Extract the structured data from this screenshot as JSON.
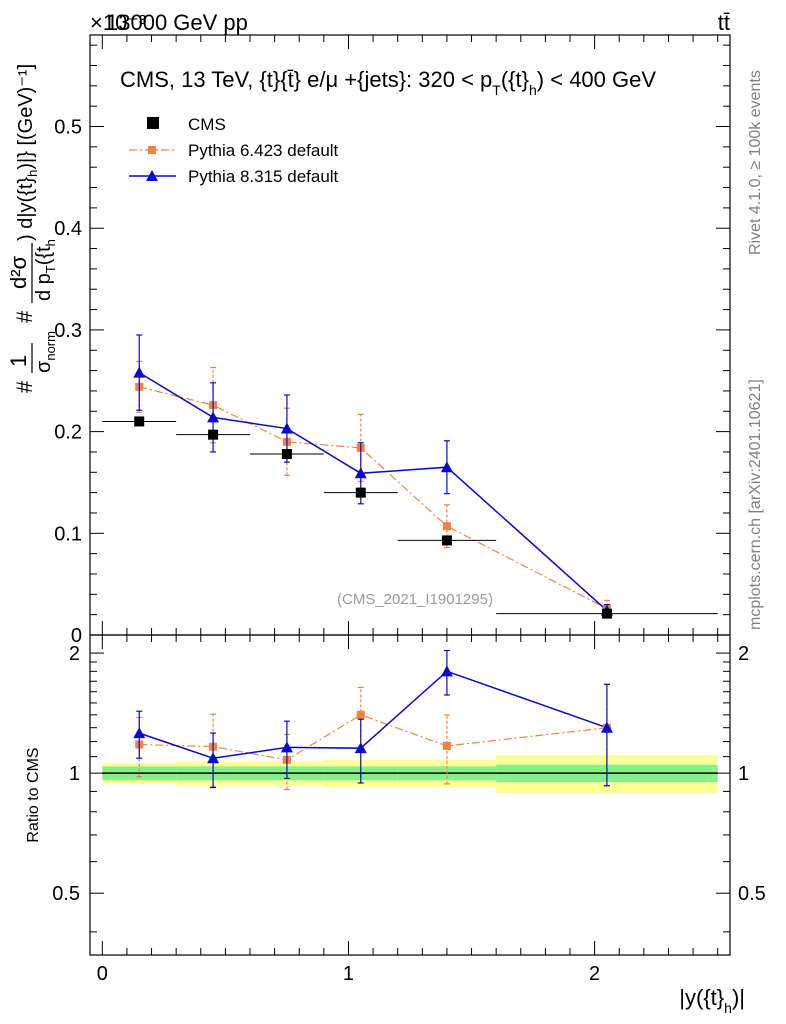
{
  "header": {
    "left": "13000 GeV pp",
    "right": "tt̄",
    "exponent": "×10⁻³"
  },
  "side_labels": {
    "rivet": "Rivet 4.1.0, ≥ 100k events",
    "mcplots": "mcplots.cern.ch [arXiv:2401.10621]"
  },
  "colors": {
    "cms": "#000000",
    "pythia6": "#f5813c",
    "pythia8": "#0a0acc",
    "band_inner": "#88f088",
    "band_outer": "#ffff99",
    "axis": "#000000"
  },
  "chart_data": [
    {
      "type": "scatter",
      "panel": "main",
      "title": "CMS, 13 TeV, {t}{t̄} e/μ +{jets}: 320 < p_T({t}_h) < 400 GeV",
      "title_parts": {
        "prefix": "CMS, 13 TeV, {t}{t̄} e/μ +{jets}: 320 <  p",
        "sub1": "T",
        "mid": "({t}",
        "sub2": "h",
        "suffix": ") < 400 GeV"
      },
      "ylabel": "# 1/σ_norm # d²σ / d p_T({t_h}) d|y({t}_h)| [(GeV)⁻¹]",
      "ylabel_parts": {
        "hash1": "#",
        "frac1_num": "1",
        "frac1_den": "σ",
        "frac1_den_sub": "norm",
        "hash2": "#",
        "frac2_num": "d²σ",
        "frac2_den": "d p",
        "frac2_den_sub": "T",
        "frac2_den_rest": "({t",
        "frac2_den_rest_sub": "h",
        "tail": ") d|y({t}",
        "tail_sub": "h",
        "tail_end": ")|} [(GeV)⁻¹]"
      },
      "yscale_exponent": -3,
      "ylim": [
        0,
        0.59
      ],
      "xlim": [
        -0.05,
        2.55
      ],
      "yticks": [
        0,
        0.1,
        0.2,
        0.3,
        0.4,
        0.5
      ],
      "ytick_labels": [
        "0",
        "0.1",
        "0.2",
        "0.3",
        "0.4",
        "0.5"
      ],
      "annotation": "(CMS_2021_I1901295)",
      "legend_position": "top-left",
      "series": [
        {
          "name": "CMS",
          "marker": "square",
          "x": [
            0.15,
            0.45,
            0.75,
            1.05,
            1.4,
            2.05
          ],
          "x_err": [
            0.15,
            0.15,
            0.15,
            0.15,
            0.2,
            0.45
          ],
          "y": [
            0.21,
            0.197,
            0.178,
            0.14,
            0.093,
            0.021
          ],
          "y_err": [
            0.004,
            0.004,
            0.003,
            0.003,
            0.002,
            0.001
          ]
        },
        {
          "name": "Pythia 6.423 default",
          "marker": "square-small",
          "line": "dashdot",
          "x": [
            0.15,
            0.45,
            0.75,
            1.05,
            1.4,
            2.05
          ],
          "y": [
            0.244,
            0.226,
            0.19,
            0.184,
            0.107,
            0.026
          ],
          "y_err": [
            0.025,
            0.037,
            0.033,
            0.033,
            0.021,
            0.008
          ]
        },
        {
          "name": "Pythia 8.315 default",
          "marker": "triangle",
          "line": "solid",
          "x": [
            0.15,
            0.45,
            0.75,
            1.05,
            1.4,
            2.05
          ],
          "y": [
            0.258,
            0.214,
            0.203,
            0.159,
            0.165,
            0.024
          ],
          "y_err": [
            0.037,
            0.034,
            0.033,
            0.03,
            0.026,
            0.006
          ]
        }
      ]
    },
    {
      "type": "scatter",
      "panel": "ratio",
      "ylabel": "Ratio to CMS",
      "xlabel": "|y({t}_h)|",
      "xlabel_parts": {
        "main": "|y({t}",
        "sub": "h",
        "end": ")|"
      },
      "ylim": [
        0.35,
        2.22
      ],
      "xlim": [
        -0.05,
        2.55
      ],
      "yticks": [
        0.5,
        1,
        2
      ],
      "ytick_labels": [
        "0.5",
        "1",
        "2"
      ],
      "xticks": [
        0,
        1,
        2
      ],
      "xtick_labels": [
        "0",
        "1",
        "2"
      ],
      "reference": 1,
      "band": {
        "edges": [
          0,
          0.3,
          0.6,
          0.9,
          1.2,
          1.6,
          2.5
        ],
        "inner": [
          0.04,
          0.04,
          0.04,
          0.04,
          0.04,
          0.05
        ],
        "outer": [
          0.06,
          0.07,
          0.07,
          0.08,
          0.08,
          0.11
        ]
      },
      "series": [
        {
          "name": "Pythia 6.423 default",
          "x": [
            0.15,
            0.45,
            0.75,
            1.05,
            1.4,
            2.05
          ],
          "y": [
            1.18,
            1.165,
            1.08,
            1.4,
            1.17,
            1.3
          ],
          "y_err": [
            0.2,
            0.24,
            0.17,
            0.24,
            0.23,
            0.37
          ]
        },
        {
          "name": "Pythia 8.315 default",
          "x": [
            0.15,
            0.45,
            0.75,
            1.05,
            1.4,
            2.05
          ],
          "y": [
            1.26,
            1.09,
            1.16,
            1.155,
            1.8,
            1.3
          ],
          "y_err": [
            0.17,
            0.17,
            0.19,
            0.21,
            0.23,
            0.37
          ]
        }
      ]
    }
  ]
}
